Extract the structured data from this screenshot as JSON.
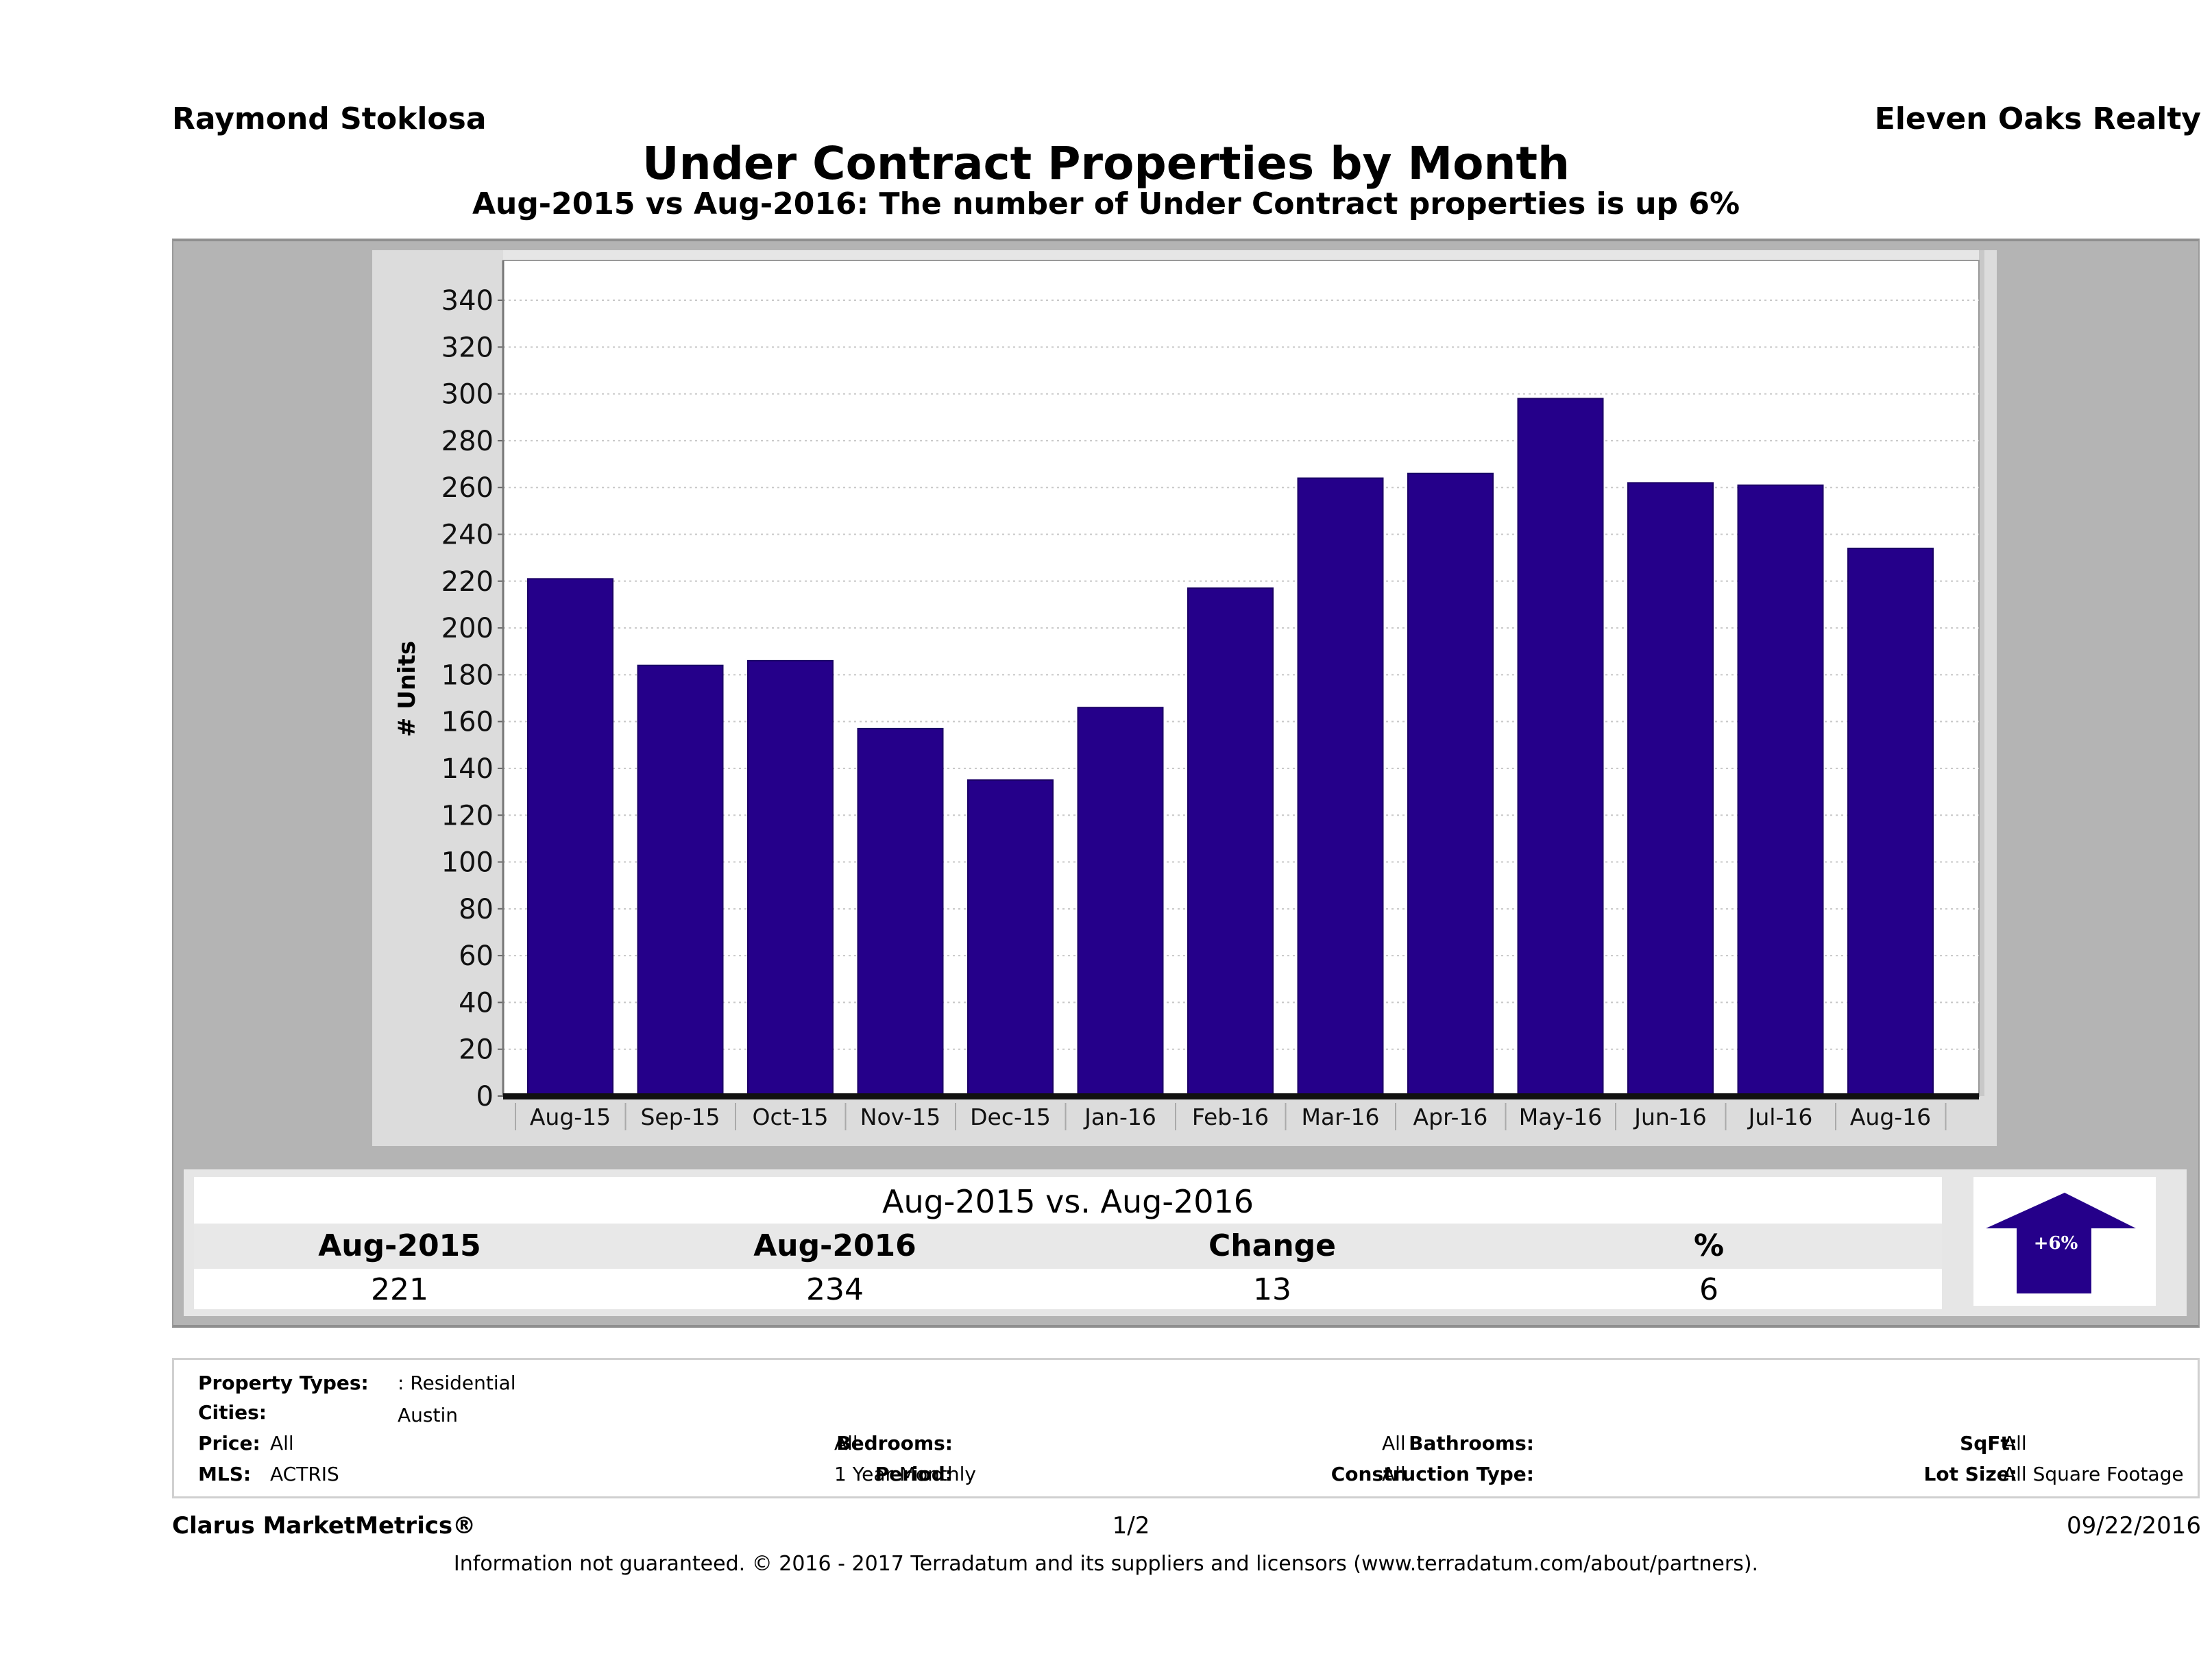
{
  "header": {
    "agent_name": "Raymond Stoklosa",
    "company_name": "Eleven Oaks Realty",
    "title": "Under Contract Properties by Month",
    "subtitle": "Aug-2015 vs Aug-2016: The number of Under Contract   properties is up 6%"
  },
  "chart_data": {
    "type": "bar",
    "title": "Under Contract Properties by Month",
    "xlabel": "",
    "ylabel": "# Units",
    "categories": [
      "Aug-15",
      "Sep-15",
      "Oct-15",
      "Nov-15",
      "Dec-15",
      "Jan-16",
      "Feb-16",
      "Mar-16",
      "Apr-16",
      "May-16",
      "Jun-16",
      "Jul-16",
      "Aug-16"
    ],
    "values": [
      221,
      184,
      186,
      157,
      135,
      166,
      217,
      264,
      266,
      298,
      262,
      261,
      234
    ],
    "ylim": [
      0,
      357
    ],
    "yticks": [
      0,
      20,
      40,
      60,
      80,
      100,
      120,
      140,
      160,
      180,
      200,
      220,
      240,
      260,
      280,
      300,
      320,
      340
    ],
    "grid": true,
    "legend": "none",
    "bar_color": "#25008a"
  },
  "summary": {
    "title": "Aug-2015 vs. Aug-2016",
    "headers": [
      "Aug-2015",
      "Aug-2016",
      "Change",
      "%"
    ],
    "values": [
      "221",
      "234",
      "13",
      "6"
    ],
    "arrow_label": "+6%",
    "arrow_direction": "up",
    "arrow_color": "#25008a"
  },
  "filters": {
    "property_types_label": "Property Types:",
    "property_types_value": ": Residential",
    "cities_label": "Cities:",
    "cities_value": "Austin",
    "price_label": "Price:",
    "price_value": "All",
    "mls_label": "MLS:",
    "mls_value": "ACTRIS",
    "bedrooms_label": "Bedrooms:",
    "bedrooms_value": "All",
    "period_label": "Period:",
    "period_value": "1 Year Monthly",
    "bathrooms_label": "Bathrooms:",
    "bathrooms_value": "All",
    "construction_label": "Construction Type:",
    "construction_value": "All",
    "sqft_label": "SqFt:",
    "sqft_value": "All",
    "lotsize_label": "Lot Size:",
    "lotsize_value": "All Square Footage"
  },
  "footer": {
    "brand": "Clarus MarketMetrics®",
    "page": "1/2",
    "date": "09/22/2016",
    "disclaimer": "Information not guaranteed. © 2016 - 2017 Terradatum and its suppliers and licensors (www.terradatum.com/about/partners)."
  }
}
